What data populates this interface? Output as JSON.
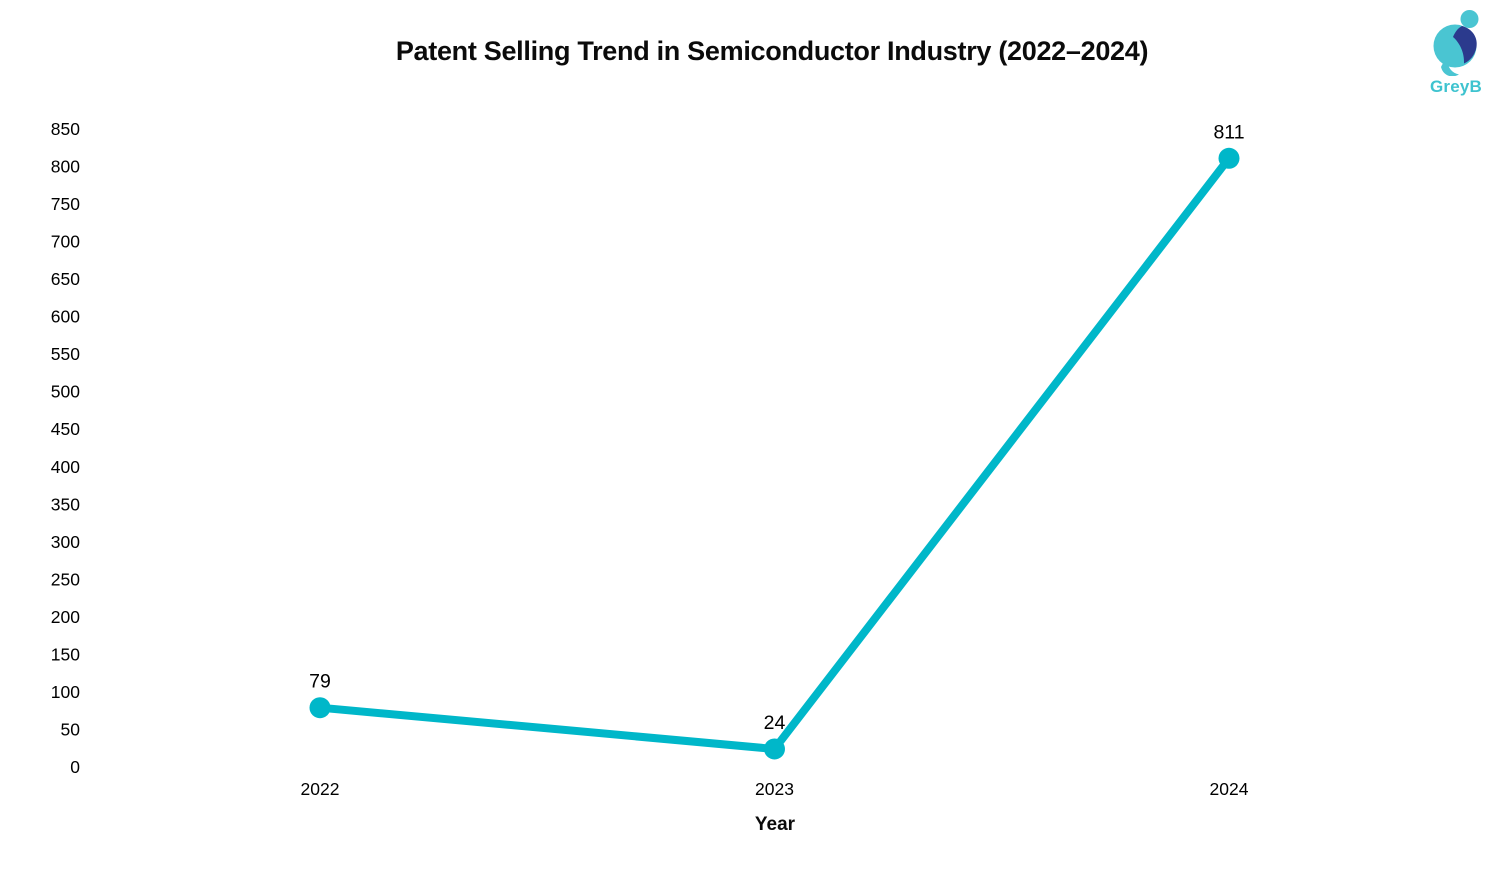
{
  "logo": {
    "text": "GreyB",
    "teal": "#4ac5d2",
    "navy": "#2b3a8d",
    "wordmark_color": "#3ec3cf"
  },
  "chart_data": {
    "type": "line",
    "title": "Patent Selling Trend in Semiconductor Industry (2022–2024)",
    "categories": [
      "2022",
      "2023",
      "2024"
    ],
    "values": [
      79,
      24,
      811
    ],
    "xlabel": "Year",
    "ylabel": "",
    "ylim": [
      0,
      850
    ],
    "ytick_step": 50,
    "grid": false,
    "legend": "none",
    "line_color": "#00b7c9",
    "marker_color": "#00b7c9",
    "data_label_color": "#000000",
    "tick_color": "#000000",
    "background": "#ffffff"
  }
}
